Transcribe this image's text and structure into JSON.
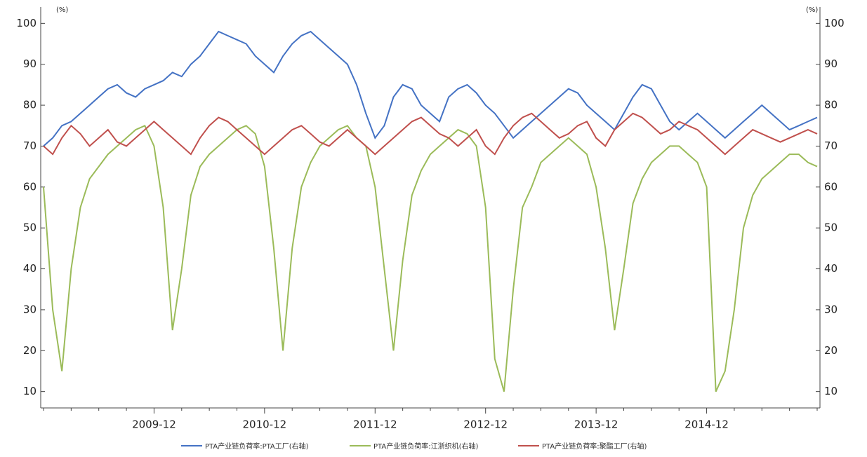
{
  "chart_data": {
    "type": "line",
    "y_unit_label": "(%)",
    "y2_unit_label": "(%)",
    "categories": [
      null,
      null,
      null,
      null,
      null,
      null,
      null,
      null,
      null,
      null,
      null,
      null,
      "2009-12",
      null,
      null,
      null,
      null,
      null,
      null,
      null,
      null,
      null,
      null,
      null,
      "2010-12",
      null,
      null,
      null,
      null,
      null,
      null,
      null,
      null,
      null,
      null,
      null,
      "2011-12",
      null,
      null,
      null,
      null,
      null,
      null,
      null,
      null,
      null,
      null,
      null,
      "2012-12",
      null,
      null,
      null,
      null,
      null,
      null,
      null,
      null,
      null,
      null,
      null,
      "2013-12",
      null,
      null,
      null,
      null,
      null,
      null,
      null,
      null,
      null,
      null,
      null,
      "2014-12",
      null,
      null,
      null,
      null,
      null,
      null,
      null,
      null,
      null,
      null,
      null,
      null
    ],
    "ylim": [
      6,
      104
    ],
    "yticks": [
      10,
      20,
      30,
      40,
      50,
      60,
      70,
      80,
      90,
      100
    ],
    "y2lim": [
      6,
      104
    ],
    "y2ticks": [
      10,
      20,
      30,
      40,
      50,
      60,
      70,
      80,
      90,
      100
    ],
    "legend": "bottom",
    "series": [
      {
        "name": "PTA产业链负荷率:PTA工厂(右轴)",
        "color": "#4472c4",
        "axis": "y2",
        "values": [
          70,
          72,
          75,
          76,
          78,
          80,
          82,
          84,
          85,
          83,
          82,
          84,
          85,
          86,
          88,
          87,
          90,
          92,
          95,
          98,
          97,
          96,
          95,
          92,
          90,
          88,
          92,
          95,
          97,
          98,
          96,
          94,
          92,
          90,
          85,
          78,
          72,
          75,
          82,
          85,
          84,
          80,
          78,
          76,
          82,
          84,
          85,
          83,
          80,
          78,
          75,
          72,
          74,
          76,
          78,
          80,
          82,
          84,
          83,
          80,
          78,
          76,
          74,
          78,
          82,
          85,
          84,
          80,
          76,
          74,
          76,
          78,
          76,
          74,
          72,
          74,
          76,
          78,
          80,
          78,
          76,
          74,
          75,
          76,
          77
        ]
      },
      {
        "name": "PTA产业链负荷率:江浙织机(右轴)",
        "color": "#9bbb59",
        "axis": "y2",
        "values": [
          60,
          30,
          15,
          40,
          55,
          62,
          65,
          68,
          70,
          72,
          74,
          75,
          70,
          55,
          25,
          40,
          58,
          65,
          68,
          70,
          72,
          74,
          75,
          73,
          65,
          45,
          20,
          45,
          60,
          66,
          70,
          72,
          74,
          75,
          72,
          70,
          60,
          40,
          20,
          42,
          58,
          64,
          68,
          70,
          72,
          74,
          73,
          70,
          55,
          18,
          10,
          35,
          55,
          60,
          66,
          68,
          70,
          72,
          70,
          68,
          60,
          45,
          25,
          40,
          56,
          62,
          66,
          68,
          70,
          70,
          68,
          66,
          60,
          10,
          15,
          30,
          50,
          58,
          62,
          64,
          66,
          68,
          68,
          66,
          65
        ]
      },
      {
        "name": "PTA产业链负荷率:聚酯工厂(右轴)",
        "color": "#c0504d",
        "axis": "y2",
        "values": [
          70,
          68,
          72,
          75,
          73,
          70,
          72,
          74,
          71,
          70,
          72,
          74,
          76,
          74,
          72,
          70,
          68,
          72,
          75,
          77,
          76,
          74,
          72,
          70,
          68,
          70,
          72,
          74,
          75,
          73,
          71,
          70,
          72,
          74,
          72,
          70,
          68,
          70,
          72,
          74,
          76,
          77,
          75,
          73,
          72,
          70,
          72,
          74,
          70,
          68,
          72,
          75,
          77,
          78,
          76,
          74,
          72,
          73,
          75,
          76,
          72,
          70,
          74,
          76,
          78,
          77,
          75,
          73,
          74,
          76,
          75,
          74,
          72,
          70,
          68,
          70,
          72,
          74,
          73,
          72,
          71,
          72,
          73,
          74,
          73
        ]
      }
    ]
  }
}
